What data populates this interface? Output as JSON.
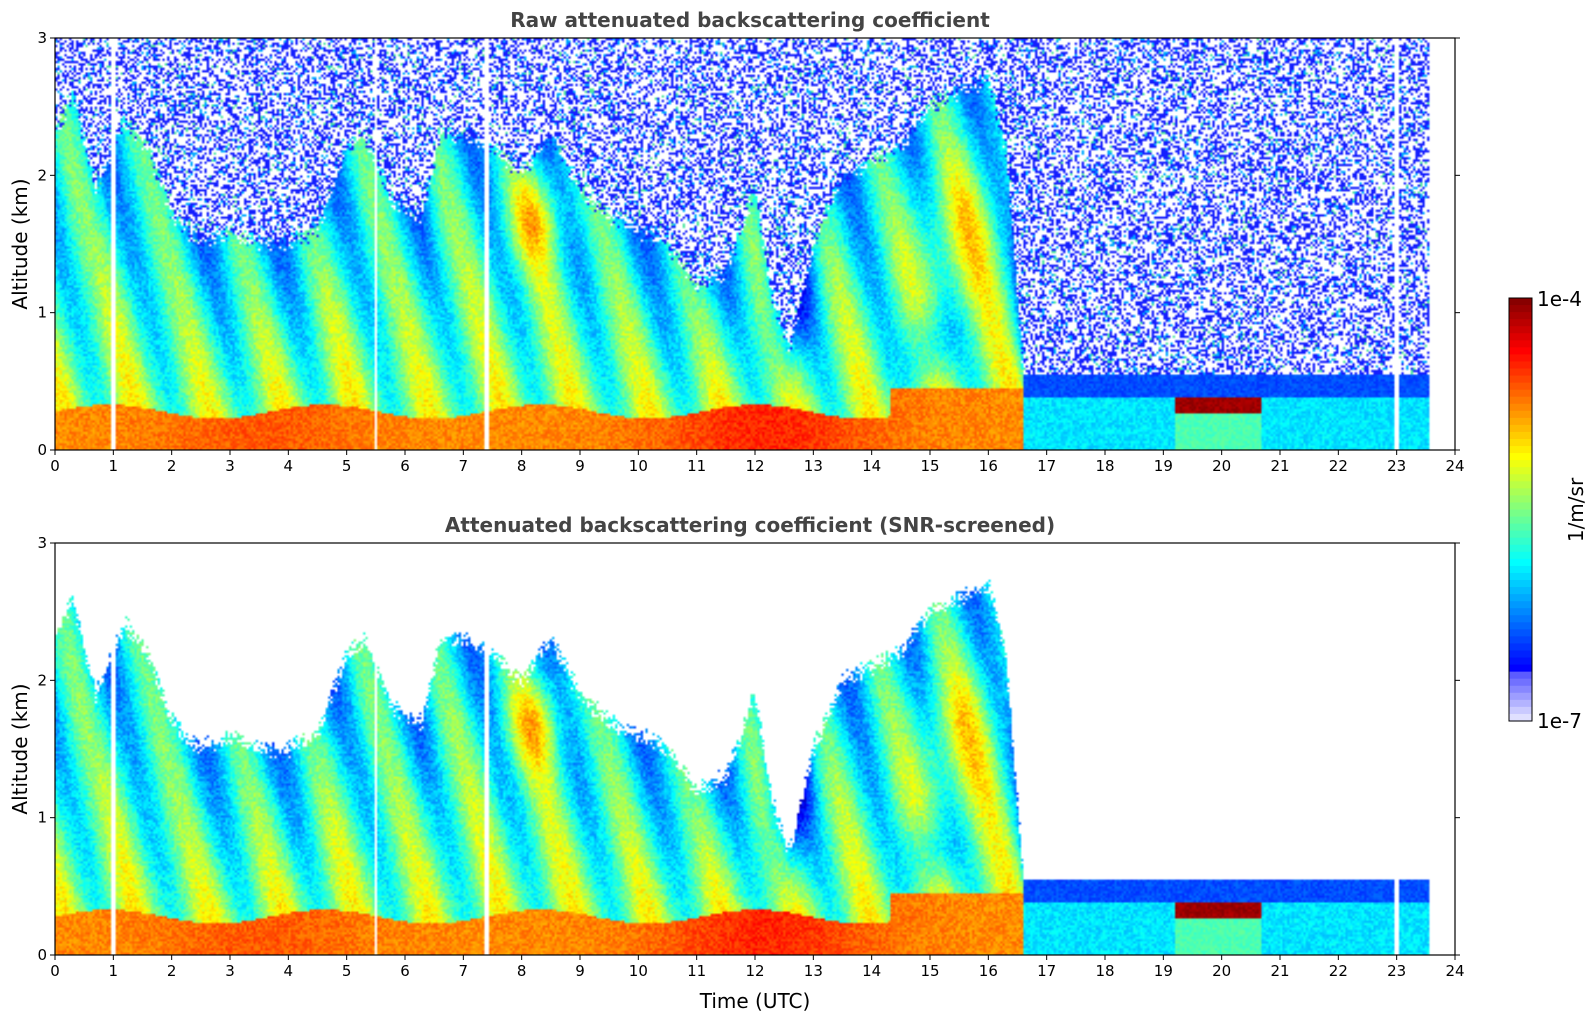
{
  "chart_data": [
    {
      "type": "heatmap",
      "title": "Raw attenuated backscattering coefficient",
      "xlabel": "",
      "ylabel": "Altitude (km)",
      "xlim": [
        0,
        24
      ],
      "ylim": [
        0,
        3
      ],
      "x_ticks": [
        "0",
        "1",
        "2",
        "3",
        "4",
        "5",
        "6",
        "7",
        "8",
        "9",
        "10",
        "11",
        "12",
        "13",
        "14",
        "15",
        "16",
        "17",
        "18",
        "19",
        "20",
        "21",
        "22",
        "23",
        "24"
      ],
      "y_ticks": [
        "0",
        "1",
        "2",
        "3"
      ],
      "screened": false
    },
    {
      "type": "heatmap",
      "title": "Attenuated backscattering coefficient (SNR-screened)",
      "xlabel": "Time (UTC)",
      "ylabel": "Altitude (km)",
      "xlim": [
        0,
        24
      ],
      "ylim": [
        0,
        3
      ],
      "x_ticks": [
        "0",
        "1",
        "2",
        "3",
        "4",
        "5",
        "6",
        "7",
        "8",
        "9",
        "10",
        "11",
        "12",
        "13",
        "14",
        "15",
        "16",
        "17",
        "18",
        "19",
        "20",
        "21",
        "22",
        "23",
        "24"
      ],
      "y_ticks": [
        "0",
        "1",
        "2",
        "3"
      ],
      "screened": true
    }
  ],
  "colorbar": {
    "label": "1/m/sr",
    "max_label": "1e-4",
    "min_label": "1e-7",
    "colormap": "jet",
    "scale": "log"
  },
  "data_end_time_utc": 23.55,
  "profile_gap_times_utc": [
    1.0,
    5.5,
    7.4,
    23.0
  ]
}
